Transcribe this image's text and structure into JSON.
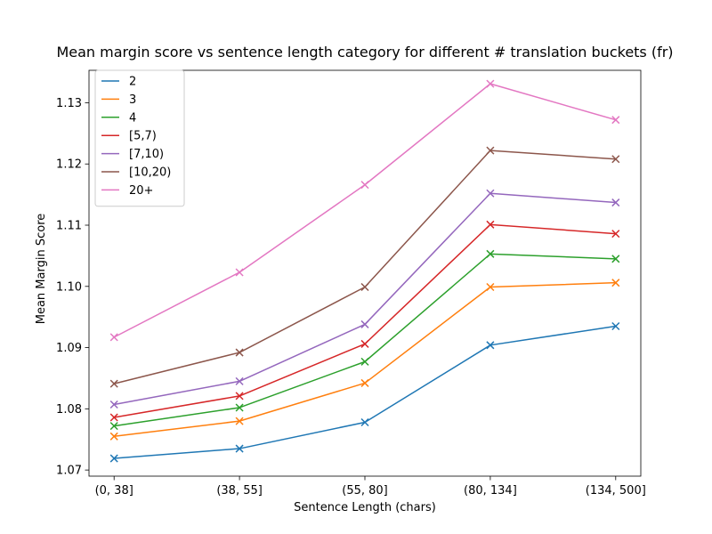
{
  "chart_data": {
    "type": "line",
    "title": "Mean margin score vs sentence length category for different # translation buckets (fr)",
    "xlabel": "Sentence Length (chars)",
    "ylabel": "Mean Margin Score",
    "categories": [
      "(0, 38]",
      "(38, 55]",
      "(55, 80]",
      "(80, 134]",
      "(134, 500]"
    ],
    "ylim": [
      1.069,
      1.1353
    ],
    "yticks": [
      1.07,
      1.08,
      1.09,
      1.1,
      1.11,
      1.12,
      1.13
    ],
    "ytick_labels": [
      "1.07",
      "1.08",
      "1.09",
      "1.10",
      "1.11",
      "1.12",
      "1.13"
    ],
    "marker": "x",
    "grid": false,
    "legend_position": "top-left",
    "series": [
      {
        "name": "2",
        "color": "#1f77b4",
        "values": [
          1.0719,
          1.0735,
          1.0778,
          1.0904,
          1.0935
        ]
      },
      {
        "name": "3",
        "color": "#ff7f0e",
        "values": [
          1.0755,
          1.078,
          1.0842,
          1.0999,
          1.1006
        ]
      },
      {
        "name": "4",
        "color": "#2ca02c",
        "values": [
          1.0772,
          1.0802,
          1.0877,
          1.1053,
          1.1045
        ]
      },
      {
        "name": "[5,7)",
        "color": "#d62728",
        "values": [
          1.0786,
          1.0821,
          1.0906,
          1.1101,
          1.1086
        ]
      },
      {
        "name": "[7,10)",
        "color": "#9467bd",
        "values": [
          1.0807,
          1.0845,
          1.0938,
          1.1152,
          1.1137
        ]
      },
      {
        "name": "[10,20)",
        "color": "#8c564b",
        "values": [
          1.0841,
          1.0892,
          1.0999,
          1.1222,
          1.1208
        ]
      },
      {
        "name": "20+",
        "color": "#e377c2",
        "values": [
          1.0917,
          1.1023,
          1.1166,
          1.1331,
          1.1272
        ]
      }
    ]
  }
}
